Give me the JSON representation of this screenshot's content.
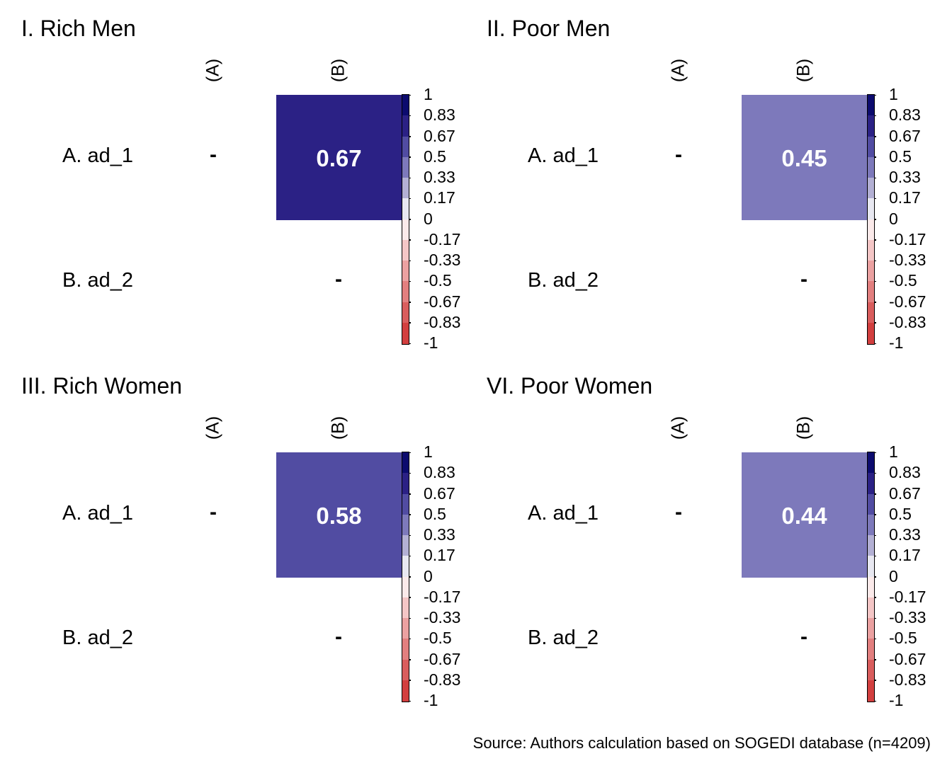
{
  "chart_data": [
    {
      "type": "heatmap",
      "title": "I. Rich Men",
      "columns": [
        "(A)",
        "(B)"
      ],
      "rows": [
        "A. ad_1",
        "B. ad_2"
      ],
      "cells": [
        {
          "row": 0,
          "col": 0,
          "value": null,
          "label": "-"
        },
        {
          "row": 0,
          "col": 1,
          "value": 0.67,
          "label": "0.67",
          "color": "#2b2185"
        },
        {
          "row": 1,
          "col": 1,
          "value": null,
          "label": "-"
        }
      ],
      "colorbar": {
        "range": [
          -1,
          1
        ],
        "ticks": [
          "1",
          "0.83",
          "0.67",
          "0.5",
          "0.33",
          "0.17",
          "0",
          "-0.17",
          "-0.33",
          "-0.5",
          "-0.67",
          "-0.83",
          "-1"
        ]
      }
    },
    {
      "type": "heatmap",
      "title": "II. Poor Men",
      "columns": [
        "(A)",
        "(B)"
      ],
      "rows": [
        "A. ad_1",
        "B. ad_2"
      ],
      "cells": [
        {
          "row": 0,
          "col": 0,
          "value": null,
          "label": "-"
        },
        {
          "row": 0,
          "col": 1,
          "value": 0.45,
          "label": "0.45",
          "color": "#7d79bb"
        },
        {
          "row": 1,
          "col": 1,
          "value": null,
          "label": "-"
        }
      ],
      "colorbar": {
        "range": [
          -1,
          1
        ],
        "ticks": [
          "1",
          "0.83",
          "0.67",
          "0.5",
          "0.33",
          "0.17",
          "0",
          "-0.17",
          "-0.33",
          "-0.5",
          "-0.67",
          "-0.83",
          "-1"
        ]
      }
    },
    {
      "type": "heatmap",
      "title": "III. Rich Women",
      "columns": [
        "(A)",
        "(B)"
      ],
      "rows": [
        "A. ad_1",
        "B. ad_2"
      ],
      "cells": [
        {
          "row": 0,
          "col": 0,
          "value": null,
          "label": "-"
        },
        {
          "row": 0,
          "col": 1,
          "value": 0.58,
          "label": "0.58",
          "color": "#514ca2"
        },
        {
          "row": 1,
          "col": 1,
          "value": null,
          "label": "-"
        }
      ],
      "colorbar": {
        "range": [
          -1,
          1
        ],
        "ticks": [
          "1",
          "0.83",
          "0.67",
          "0.5",
          "0.33",
          "0.17",
          "0",
          "-0.17",
          "-0.33",
          "-0.5",
          "-0.67",
          "-0.83",
          "-1"
        ]
      }
    },
    {
      "type": "heatmap",
      "title": "VI. Poor Women",
      "columns": [
        "(A)",
        "(B)"
      ],
      "rows": [
        "A. ad_1",
        "B. ad_2"
      ],
      "cells": [
        {
          "row": 0,
          "col": 0,
          "value": null,
          "label": "-"
        },
        {
          "row": 0,
          "col": 1,
          "value": 0.44,
          "label": "0.44",
          "color": "#7d79bb"
        },
        {
          "row": 1,
          "col": 1,
          "value": null,
          "label": "-"
        }
      ],
      "colorbar": {
        "range": [
          -1,
          1
        ],
        "ticks": [
          "1",
          "0.83",
          "0.67",
          "0.5",
          "0.33",
          "0.17",
          "0",
          "-0.17",
          "-0.33",
          "-0.5",
          "-0.67",
          "-0.83",
          "-1"
        ]
      }
    }
  ],
  "colorbar_colors": [
    "#0c0b6e",
    "#2b2185",
    "#514ca2",
    "#7d79bb",
    "#b3b0d4",
    "#e8e8f1",
    "#fbeaea",
    "#f4c6c6",
    "#eba1a1",
    "#e27f7f",
    "#d95d5d",
    "#d23f3f"
  ],
  "source": "Source: Authors calculation based on SOGEDI database (n=4209)"
}
